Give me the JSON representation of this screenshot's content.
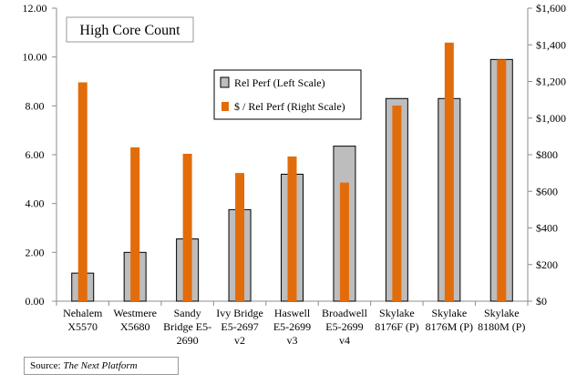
{
  "chart_data": {
    "type": "bar",
    "title": "High Core Count",
    "categories": [
      [
        "Nehalem",
        "X5570"
      ],
      [
        "Westmere",
        "X5680"
      ],
      [
        "Sandy",
        "Bridge E5-",
        "2690"
      ],
      [
        "Ivy Bridge",
        "E5-2697",
        "v2"
      ],
      [
        "Haswell",
        "E5-2699",
        "v3"
      ],
      [
        "Broadwell",
        "E5-2699",
        "v4"
      ],
      [
        "Skylake",
        "8176F (P)"
      ],
      [
        "Skylake",
        "8176M (P)"
      ],
      [
        "Skylake",
        "8180M (P)"
      ]
    ],
    "series": [
      {
        "name": "Rel Perf (Left Scale)",
        "axis": "left",
        "color": "#bdbdbd",
        "values": [
          1.15,
          2.0,
          2.55,
          3.75,
          5.2,
          6.35,
          8.3,
          8.3,
          9.9
        ]
      },
      {
        "name": "$ / Rel Perf (Right Scale)",
        "axis": "right",
        "color": "#e36c0a",
        "values": [
          1195,
          840,
          805,
          700,
          790,
          648,
          1068,
          1412,
          1320
        ]
      }
    ],
    "y_left": {
      "min": 0,
      "max": 12,
      "step": 2,
      "tick_labels": [
        "0.00",
        "2.00",
        "4.00",
        "6.00",
        "8.00",
        "10.00",
        "12.00"
      ]
    },
    "y_right": {
      "min": 0,
      "max": 1600,
      "step": 200,
      "tick_labels": [
        "$0",
        "$200",
        "$400",
        "$600",
        "$800",
        "$1,000",
        "$1,200",
        "$1,400",
        "$1,600"
      ]
    },
    "grid": false,
    "legend_position": "upper-middle"
  },
  "source": {
    "label": "Source:",
    "name": "The Next Platform"
  }
}
